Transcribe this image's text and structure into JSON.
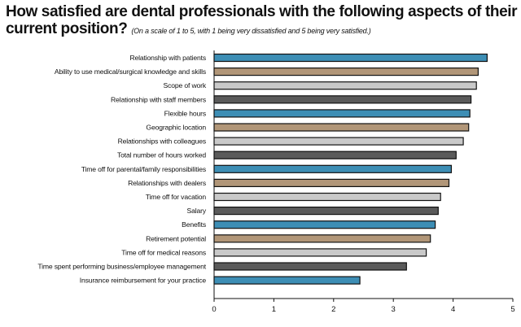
{
  "chart_data": {
    "type": "bar",
    "orientation": "horizontal",
    "title": "How satisfied are dental professionals with the following aspects of their current position?",
    "subtitle": "(On a scale of 1 to 5, with 1 being very dissatisfied and 5 being very satisfied.)",
    "categories": [
      "Relationship with patients",
      "Ability to use medical/surgical knowledge and skills",
      "Scope of work",
      "Relationship with staff members",
      "Flexible hours",
      "Geographic location",
      "Relationships with colleagues",
      "Total number of hours worked",
      "Time off for parental/family responsibilities",
      "Relationships with dealers",
      "Time off for vacation",
      "Salary",
      "Benefits",
      "Retirement potential",
      "Time off for medical reasons",
      "Time spent performing business/employee management",
      "Insurance reimbursement for your practice"
    ],
    "values": [
      4.57,
      4.42,
      4.39,
      4.3,
      4.28,
      4.26,
      4.17,
      4.05,
      3.97,
      3.93,
      3.79,
      3.75,
      3.7,
      3.62,
      3.55,
      3.22,
      2.44
    ],
    "colors": [
      "#3d8eb5",
      "#b19678",
      "#c9c9c9",
      "#5a5a5a",
      "#3d8eb5",
      "#b19678",
      "#c9c9c9",
      "#5a5a5a",
      "#3d8eb5",
      "#b19678",
      "#c9c9c9",
      "#5a5a5a",
      "#3d8eb5",
      "#b19678",
      "#c9c9c9",
      "#5a5a5a",
      "#3d8eb5"
    ],
    "xlim": [
      0,
      5
    ],
    "xticks": [
      "0",
      "1",
      "2",
      "3",
      "4",
      "5"
    ],
    "xlabel": "",
    "ylabel": ""
  }
}
